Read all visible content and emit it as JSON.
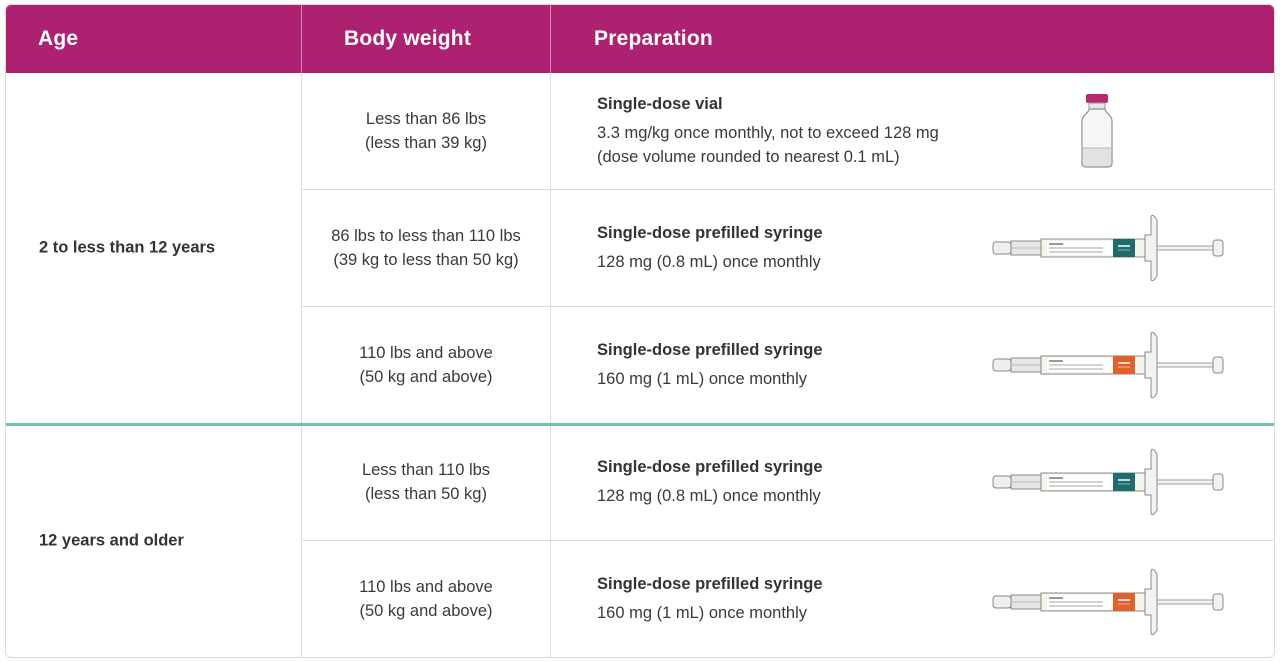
{
  "header": {
    "age": "Age",
    "body_weight": "Body weight",
    "preparation": "Preparation"
  },
  "colors": {
    "header_bg": "#ad2270",
    "group_divider": "#6fc2b0",
    "label_128": "#1f6b6e",
    "label_160": "#e0612b"
  },
  "groups": [
    {
      "age": "2 to less than 12 years"
    },
    {
      "age": "12 years and older"
    }
  ],
  "rows": [
    {
      "weight": [
        "Less than 86 lbs",
        "(less than 39 kg)"
      ],
      "prep_title": "Single-dose vial",
      "prep_lines": [
        "3.3 mg/kg once monthly, not to exceed 128 mg",
        "(dose volume rounded to nearest 0.1 mL)"
      ],
      "image": "vial"
    },
    {
      "weight": [
        "86 lbs to less than 110 lbs",
        "(39 kg to less than 50 kg)"
      ],
      "prep_title": "Single-dose prefilled syringe",
      "prep_lines": [
        "128 mg (0.8 mL) once monthly"
      ],
      "image": "syringe-128"
    },
    {
      "weight": [
        "110 lbs and above",
        "(50 kg and above)"
      ],
      "prep_title": "Single-dose prefilled syringe",
      "prep_lines": [
        "160 mg (1 mL) once monthly"
      ],
      "image": "syringe-160"
    },
    {
      "weight": [
        "Less than 110 lbs",
        "(less than 50 kg)"
      ],
      "prep_title": "Single-dose prefilled syringe",
      "prep_lines": [
        "128 mg (0.8 mL) once monthly"
      ],
      "image": "syringe-128"
    },
    {
      "weight": [
        "110 lbs and above",
        "(50 kg and above)"
      ],
      "prep_title": "Single-dose prefilled syringe",
      "prep_lines": [
        "160 mg (1 mL) once monthly"
      ],
      "image": "syringe-160"
    }
  ]
}
